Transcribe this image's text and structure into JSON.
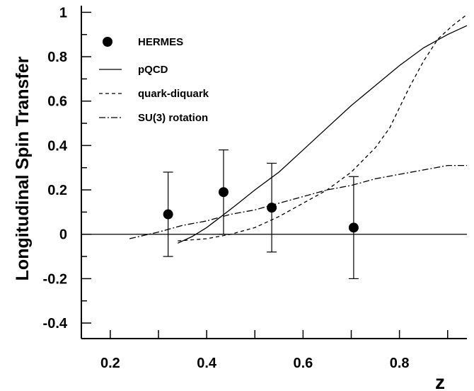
{
  "chart_data": {
    "type": "line",
    "title": "",
    "xlabel": "z",
    "ylabel": "Longitudinal Spin Transfer",
    "xlim": [
      0.14,
      0.94
    ],
    "ylim": [
      -0.47,
      1.03
    ],
    "x_ticks": [
      "0.2",
      "0.4",
      "0.6",
      "0.8"
    ],
    "y_ticks": [
      "-0.4",
      "-0.2",
      "0",
      "0.2",
      "0.4",
      "0.6",
      "0.8",
      "1"
    ],
    "grid": false,
    "legend_position": "top-left",
    "zero_line": true,
    "data_points": {
      "name": "HERMES",
      "x": [
        0.32,
        0.435,
        0.535,
        0.705
      ],
      "y": [
        0.09,
        0.19,
        0.12,
        0.03
      ],
      "err_low": [
        0.19,
        0.19,
        0.2,
        0.23
      ],
      "err_high": [
        0.19,
        0.19,
        0.2,
        0.23
      ]
    },
    "series": [
      {
        "name": "pQCD",
        "style": "solid",
        "x": [
          0.34,
          0.37,
          0.4,
          0.43,
          0.46,
          0.5,
          0.55,
          0.6,
          0.65,
          0.7,
          0.75,
          0.8,
          0.85,
          0.9,
          0.94
        ],
        "y": [
          -0.04,
          -0.01,
          0.03,
          0.08,
          0.13,
          0.2,
          0.28,
          0.38,
          0.48,
          0.58,
          0.67,
          0.76,
          0.84,
          0.9,
          0.94
        ]
      },
      {
        "name": "quark-diquark",
        "style": "dashed",
        "x": [
          0.34,
          0.4,
          0.45,
          0.5,
          0.55,
          0.6,
          0.65,
          0.7,
          0.75,
          0.78,
          0.8,
          0.82,
          0.85,
          0.88,
          0.91,
          0.94
        ],
        "y": [
          -0.03,
          -0.02,
          0.0,
          0.03,
          0.08,
          0.14,
          0.2,
          0.28,
          0.39,
          0.48,
          0.57,
          0.66,
          0.78,
          0.88,
          0.94,
          0.99
        ]
      },
      {
        "name": "SU(3) rotation",
        "style": "dashdot",
        "x": [
          0.24,
          0.3,
          0.35,
          0.4,
          0.45,
          0.5,
          0.55,
          0.6,
          0.65,
          0.7,
          0.75,
          0.8,
          0.85,
          0.9,
          0.94
        ],
        "y": [
          -0.02,
          0.01,
          0.04,
          0.06,
          0.09,
          0.11,
          0.14,
          0.17,
          0.2,
          0.22,
          0.25,
          0.27,
          0.29,
          0.31,
          0.31
        ]
      }
    ]
  }
}
